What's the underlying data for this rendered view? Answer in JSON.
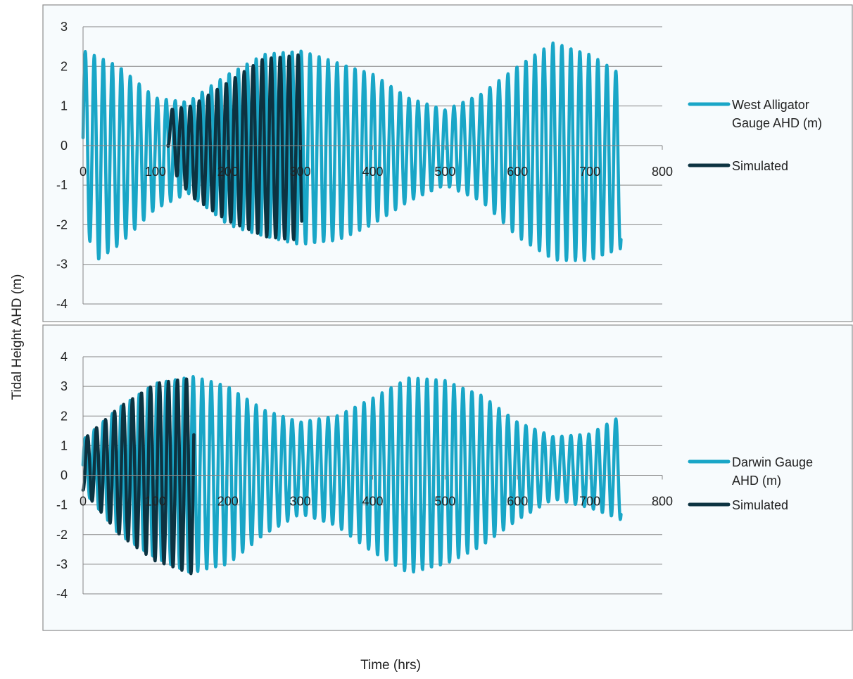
{
  "figure": {
    "ylabel": "Tidal Height AHD (m)",
    "xlabel": "Time (hrs)"
  },
  "colors": {
    "observed": "#19a6c7",
    "simulated": "#0d3341",
    "grid": "#868686",
    "panel_bg": "#f7fbfd",
    "panel_border": "#8c8c8c"
  },
  "chart_data": [
    {
      "type": "line",
      "xlim": [
        0,
        800
      ],
      "ylim": [
        -4,
        3
      ],
      "xticks": [
        "0",
        "100",
        "200",
        "300",
        "400",
        "500",
        "600",
        "700",
        "800"
      ],
      "yticks": [
        "3",
        "2",
        "1",
        "0",
        "-1",
        "-2",
        "-3",
        "-4"
      ],
      "grid": "horizontal",
      "legend_position": "right",
      "series": [
        {
          "name": "West Alligator Gauge AHD (m)",
          "color": "observed",
          "x_range": [
            0,
            743
          ],
          "period_hrs": 12.42,
          "peak_envelope": [
            [
              0,
              2.4
            ],
            [
              50,
              2.0
            ],
            [
              100,
              1.2
            ],
            [
              145,
              1.1
            ],
            [
              200,
              1.8
            ],
            [
              250,
              2.3
            ],
            [
              300,
              2.4
            ],
            [
              350,
              2.1
            ],
            [
              400,
              1.8
            ],
            [
              450,
              1.2
            ],
            [
              500,
              0.9
            ],
            [
              550,
              1.3
            ],
            [
              600,
              2.0
            ],
            [
              650,
              2.6
            ],
            [
              700,
              2.3
            ],
            [
              743,
              1.8
            ]
          ],
          "trough_envelope": [
            [
              0,
              -2.0
            ],
            [
              20,
              -2.9
            ],
            [
              50,
              -2.5
            ],
            [
              100,
              -1.6
            ],
            [
              145,
              -1.2
            ],
            [
              200,
              -2.0
            ],
            [
              250,
              -2.3
            ],
            [
              300,
              -2.5
            ],
            [
              350,
              -2.4
            ],
            [
              400,
              -2.0
            ],
            [
              450,
              -1.4
            ],
            [
              500,
              -1.0
            ],
            [
              550,
              -1.4
            ],
            [
              600,
              -2.3
            ],
            [
              650,
              -2.9
            ],
            [
              700,
              -2.9
            ],
            [
              743,
              -2.6
            ]
          ]
        },
        {
          "name": "Simulated",
          "color": "simulated",
          "x_range": [
            117,
            302
          ],
          "period_hrs": 12.42,
          "peak_envelope": [
            [
              117,
              0.9
            ],
            [
              150,
              1.0
            ],
            [
              200,
              1.6
            ],
            [
              250,
              2.2
            ],
            [
              302,
              2.3
            ]
          ],
          "trough_envelope": [
            [
              117,
              0.0
            ],
            [
              130,
              -0.8
            ],
            [
              150,
              -1.3
            ],
            [
              200,
              -1.9
            ],
            [
              250,
              -2.3
            ],
            [
              302,
              -2.4
            ]
          ]
        }
      ]
    },
    {
      "type": "line",
      "xlim": [
        0,
        800
      ],
      "ylim": [
        -4,
        4
      ],
      "xticks": [
        "0",
        "100",
        "200",
        "300",
        "400",
        "500",
        "600",
        "700",
        "800"
      ],
      "yticks": [
        "4",
        "3",
        "2",
        "1",
        "0",
        "-1",
        "-2",
        "-3",
        "-4"
      ],
      "grid": "horizontal",
      "legend_position": "right",
      "series": [
        {
          "name": "Darwin Gauge AHD (m)",
          "color": "observed",
          "x_range": [
            0,
            743
          ],
          "period_hrs": 12.42,
          "peak_envelope": [
            [
              0,
              1.2
            ],
            [
              50,
              2.3
            ],
            [
              100,
              3.1
            ],
            [
              150,
              3.35
            ],
            [
              200,
              3.0
            ],
            [
              250,
              2.2
            ],
            [
              300,
              1.8
            ],
            [
              350,
              2.0
            ],
            [
              400,
              2.6
            ],
            [
              450,
              3.3
            ],
            [
              500,
              3.2
            ],
            [
              550,
              2.7
            ],
            [
              600,
              1.8
            ],
            [
              650,
              1.3
            ],
            [
              700,
              1.4
            ],
            [
              743,
              2.0
            ]
          ],
          "trough_envelope": [
            [
              0,
              -0.5
            ],
            [
              50,
              -2.0
            ],
            [
              100,
              -2.8
            ],
            [
              150,
              -3.3
            ],
            [
              200,
              -3.0
            ],
            [
              250,
              -2.0
            ],
            [
              300,
              -1.3
            ],
            [
              350,
              -1.7
            ],
            [
              400,
              -2.6
            ],
            [
              450,
              -3.3
            ],
            [
              500,
              -3.0
            ],
            [
              550,
              -2.4
            ],
            [
              600,
              -1.5
            ],
            [
              650,
              -0.8
            ],
            [
              700,
              -1.1
            ],
            [
              743,
              -1.5
            ]
          ]
        },
        {
          "name": "Simulated",
          "color": "simulated",
          "x_range": [
            0,
            153
          ],
          "period_hrs": 12.42,
          "peak_envelope": [
            [
              0,
              1.2
            ],
            [
              50,
              2.3
            ],
            [
              100,
              3.1
            ],
            [
              153,
              3.3
            ]
          ],
          "trough_envelope": [
            [
              0,
              -0.5
            ],
            [
              50,
              -2.0
            ],
            [
              100,
              -2.9
            ],
            [
              153,
              -3.35
            ]
          ]
        }
      ]
    }
  ]
}
